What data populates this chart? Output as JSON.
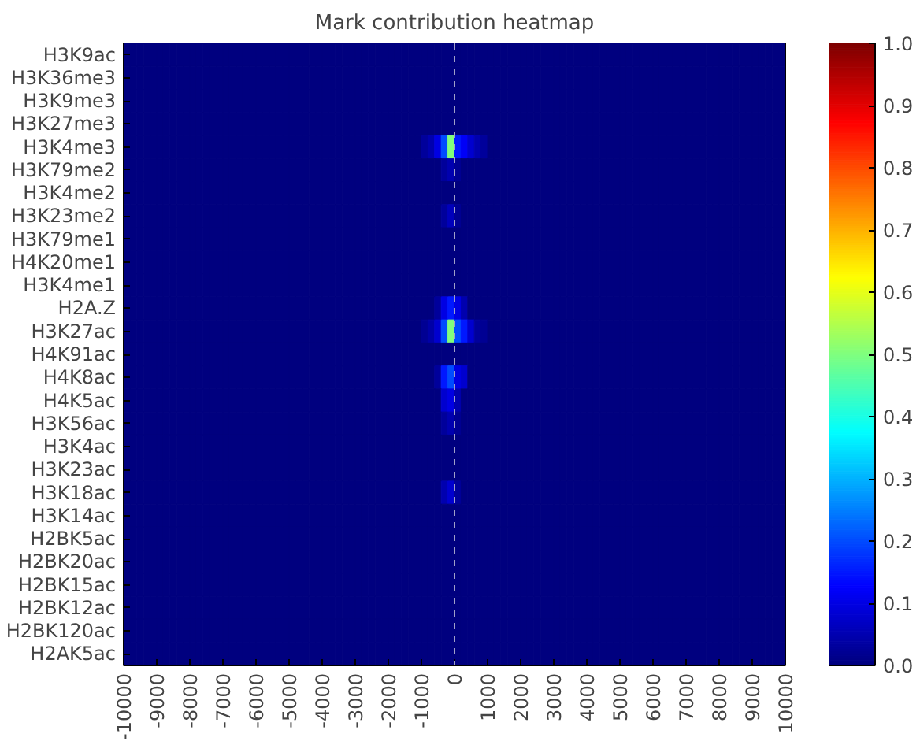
{
  "chart_data": {
    "type": "heatmap",
    "title": "Mark contribution heatmap",
    "x": [
      -9900,
      -9700,
      -9500,
      -9300,
      -9100,
      -8900,
      -8700,
      -8500,
      -8300,
      -8100,
      -7900,
      -7700,
      -7500,
      -7300,
      -7100,
      -6900,
      -6700,
      -6500,
      -6300,
      -6100,
      -5900,
      -5700,
      -5500,
      -5300,
      -5100,
      -4900,
      -4700,
      -4500,
      -4300,
      -4100,
      -3900,
      -3700,
      -3500,
      -3300,
      -3100,
      -2900,
      -2700,
      -2500,
      -2300,
      -2100,
      -1900,
      -1700,
      -1500,
      -1300,
      -1100,
      -900,
      -700,
      -500,
      -300,
      -100,
      100,
      300,
      500,
      700,
      900,
      1100,
      1300,
      1500,
      1700,
      1900,
      2100,
      2300,
      2500,
      2700,
      2900,
      3100,
      3300,
      3500,
      3700,
      3900,
      4100,
      4300,
      4500,
      4700,
      4900,
      5100,
      5300,
      5500,
      5700,
      5900,
      6100,
      6300,
      6500,
      6700,
      6900,
      7100,
      7300,
      7500,
      7700,
      7900,
      8100,
      8300,
      8500,
      8700,
      8900,
      9100,
      9300,
      9500,
      9700,
      9900
    ],
    "y_categories": [
      "H3K9ac",
      "H3K36me3",
      "H3K9me3",
      "H3K27me3",
      "H3K4me3",
      "H3K79me2",
      "H3K4me2",
      "H3K23me2",
      "H3K79me1",
      "H4K20me1",
      "H3K4me1",
      "H2A.Z",
      "H3K27ac",
      "H4K91ac",
      "H4K8ac",
      "H4K5ac",
      "H3K56ac",
      "H3K4ac",
      "H3K23ac",
      "H3K18ac",
      "H3K14ac",
      "H2BK5ac",
      "H2BK20ac",
      "H2BK15ac",
      "H2BK12ac",
      "H2BK120ac",
      "H2AK5ac"
    ],
    "cells": [
      [
        0,
        0,
        0,
        0,
        0,
        0,
        0,
        0,
        0,
        0,
        0,
        0,
        0,
        0,
        0,
        0,
        0,
        0,
        0,
        0,
        0,
        0,
        0,
        0,
        0,
        0,
        0,
        0,
        0,
        0,
        0,
        0,
        0,
        0,
        0,
        0,
        0,
        0,
        0,
        0,
        0,
        0,
        0,
        0,
        0,
        0,
        0,
        0,
        0,
        0,
        0,
        0,
        0,
        0,
        0,
        0,
        0,
        0,
        0,
        0,
        0,
        0,
        0,
        0,
        0,
        0,
        0,
        0,
        0,
        0,
        0,
        0,
        0,
        0,
        0,
        0,
        0,
        0,
        0,
        0,
        0,
        0,
        0,
        0,
        0,
        0,
        0,
        0,
        0,
        0,
        0,
        0,
        0,
        0,
        0,
        0,
        0,
        0,
        0,
        0
      ],
      [
        0,
        0,
        0,
        0,
        0,
        0,
        0,
        0,
        0,
        0,
        0,
        0,
        0,
        0,
        0,
        0,
        0,
        0,
        0,
        0,
        0,
        0,
        0,
        0,
        0,
        0,
        0,
        0,
        0,
        0,
        0,
        0,
        0,
        0,
        0,
        0,
        0,
        0,
        0,
        0,
        0,
        0,
        0,
        0,
        0,
        0,
        0,
        0,
        0,
        0,
        0,
        0,
        0,
        0,
        0,
        0,
        0,
        0,
        0,
        0,
        0,
        0,
        0,
        0,
        0,
        0,
        0,
        0,
        0,
        0,
        0,
        0,
        0,
        0,
        0,
        0,
        0,
        0,
        0,
        0,
        0,
        0,
        0,
        0,
        0,
        0,
        0,
        0,
        0,
        0,
        0,
        0,
        0,
        0,
        0,
        0,
        0,
        0,
        0,
        0
      ],
      [
        0,
        0,
        0,
        0,
        0,
        0,
        0,
        0,
        0,
        0,
        0,
        0,
        0,
        0,
        0,
        0,
        0,
        0,
        0,
        0,
        0,
        0,
        0,
        0,
        0,
        0,
        0,
        0,
        0,
        0,
        0,
        0,
        0,
        0,
        0,
        0,
        0,
        0,
        0,
        0,
        0,
        0,
        0,
        0,
        0,
        0,
        0,
        0,
        0,
        0,
        0,
        0,
        0,
        0,
        0,
        0,
        0,
        0,
        0,
        0,
        0,
        0,
        0,
        0,
        0,
        0,
        0,
        0,
        0,
        0,
        0,
        0,
        0,
        0,
        0,
        0,
        0,
        0,
        0,
        0,
        0,
        0,
        0,
        0,
        0,
        0,
        0,
        0,
        0,
        0,
        0,
        0,
        0,
        0,
        0,
        0,
        0,
        0,
        0,
        0
      ],
      [
        0,
        0,
        0,
        0,
        0,
        0,
        0,
        0,
        0,
        0,
        0,
        0,
        0,
        0,
        0,
        0,
        0,
        0,
        0,
        0,
        0,
        0,
        0,
        0,
        0,
        0,
        0,
        0,
        0,
        0,
        0,
        0,
        0,
        0,
        0,
        0,
        0,
        0,
        0,
        0,
        0,
        0,
        0,
        0,
        0,
        0,
        0,
        0,
        0,
        0,
        0,
        0,
        0,
        0,
        0,
        0,
        0,
        0,
        0,
        0,
        0,
        0,
        0,
        0,
        0,
        0,
        0,
        0,
        0,
        0,
        0,
        0,
        0,
        0,
        0,
        0,
        0,
        0,
        0,
        0,
        0,
        0,
        0,
        0,
        0,
        0,
        0,
        0,
        0,
        0,
        0,
        0,
        0,
        0,
        0,
        0,
        0,
        0,
        0,
        0
      ],
      [
        0,
        0,
        0,
        0,
        0,
        0,
        0,
        0,
        0,
        0,
        0,
        0,
        0,
        0,
        0,
        0,
        0,
        0,
        0,
        0,
        0,
        0,
        0,
        0,
        0,
        0,
        0,
        0,
        0,
        0,
        0,
        0,
        0,
        0,
        0,
        0,
        0,
        0,
        0,
        0,
        0,
        0,
        0,
        0,
        0,
        0.03,
        0.05,
        0.1,
        0.2,
        0.5,
        0.15,
        0.12,
        0.08,
        0.05,
        0.03,
        0,
        0,
        0,
        0,
        0,
        0,
        0,
        0,
        0,
        0,
        0,
        0,
        0,
        0,
        0,
        0,
        0,
        0,
        0,
        0,
        0,
        0,
        0,
        0,
        0,
        0,
        0,
        0,
        0,
        0,
        0,
        0,
        0,
        0,
        0,
        0,
        0,
        0,
        0,
        0,
        0,
        0,
        0,
        0,
        0
      ],
      [
        0,
        0,
        0,
        0,
        0,
        0,
        0,
        0,
        0,
        0,
        0,
        0,
        0,
        0,
        0,
        0,
        0,
        0,
        0,
        0,
        0,
        0,
        0,
        0,
        0,
        0,
        0,
        0,
        0,
        0,
        0,
        0,
        0,
        0,
        0,
        0,
        0,
        0,
        0,
        0,
        0,
        0,
        0,
        0,
        0,
        0,
        0,
        0,
        0.03,
        0.05,
        0.02,
        0,
        0,
        0,
        0,
        0,
        0,
        0,
        0,
        0,
        0,
        0,
        0,
        0,
        0,
        0,
        0,
        0,
        0,
        0,
        0,
        0,
        0,
        0,
        0,
        0,
        0,
        0,
        0,
        0,
        0,
        0,
        0,
        0,
        0,
        0,
        0,
        0,
        0,
        0,
        0,
        0,
        0,
        0,
        0,
        0,
        0,
        0,
        0,
        0
      ],
      [
        0,
        0,
        0,
        0,
        0,
        0,
        0,
        0,
        0,
        0,
        0,
        0,
        0,
        0,
        0,
        0,
        0,
        0,
        0,
        0,
        0,
        0,
        0,
        0,
        0,
        0,
        0,
        0,
        0,
        0,
        0,
        0,
        0,
        0,
        0,
        0,
        0,
        0,
        0,
        0,
        0,
        0,
        0,
        0,
        0,
        0,
        0,
        0,
        0,
        0,
        0,
        0,
        0,
        0,
        0,
        0,
        0,
        0,
        0,
        0,
        0,
        0,
        0,
        0,
        0,
        0,
        0,
        0,
        0,
        0,
        0,
        0,
        0,
        0,
        0,
        0,
        0,
        0,
        0,
        0,
        0,
        0,
        0,
        0,
        0,
        0,
        0,
        0,
        0,
        0,
        0,
        0,
        0,
        0,
        0,
        0,
        0,
        0,
        0,
        0
      ],
      [
        0,
        0,
        0,
        0,
        0,
        0,
        0,
        0,
        0,
        0,
        0,
        0,
        0,
        0,
        0,
        0,
        0,
        0,
        0,
        0,
        0,
        0,
        0,
        0,
        0,
        0,
        0,
        0,
        0,
        0,
        0,
        0,
        0,
        0,
        0,
        0,
        0,
        0,
        0,
        0,
        0,
        0,
        0,
        0,
        0,
        0,
        0,
        0,
        0.03,
        0.06,
        0.02,
        0,
        0,
        0,
        0,
        0,
        0,
        0,
        0,
        0,
        0,
        0,
        0,
        0,
        0,
        0,
        0,
        0,
        0,
        0,
        0,
        0,
        0,
        0,
        0,
        0,
        0,
        0,
        0,
        0,
        0,
        0,
        0,
        0,
        0,
        0,
        0,
        0,
        0,
        0,
        0,
        0,
        0,
        0,
        0,
        0,
        0,
        0,
        0,
        0
      ],
      [
        0,
        0,
        0,
        0,
        0,
        0,
        0,
        0,
        0,
        0,
        0,
        0,
        0,
        0,
        0,
        0,
        0,
        0,
        0,
        0,
        0,
        0,
        0,
        0,
        0,
        0,
        0,
        0,
        0,
        0,
        0,
        0,
        0,
        0,
        0,
        0,
        0,
        0,
        0,
        0,
        0,
        0,
        0,
        0,
        0,
        0,
        0,
        0,
        0,
        0,
        0,
        0,
        0,
        0,
        0,
        0,
        0,
        0,
        0,
        0,
        0,
        0,
        0,
        0,
        0,
        0,
        0,
        0,
        0,
        0,
        0,
        0,
        0,
        0,
        0,
        0,
        0,
        0,
        0,
        0,
        0,
        0,
        0,
        0,
        0,
        0,
        0,
        0,
        0,
        0,
        0,
        0,
        0,
        0,
        0,
        0,
        0,
        0,
        0,
        0
      ],
      [
        0,
        0,
        0,
        0,
        0,
        0,
        0,
        0,
        0,
        0,
        0,
        0,
        0,
        0,
        0,
        0,
        0,
        0,
        0,
        0,
        0,
        0,
        0,
        0,
        0,
        0,
        0,
        0,
        0,
        0,
        0,
        0,
        0,
        0,
        0,
        0,
        0,
        0,
        0,
        0,
        0,
        0,
        0,
        0,
        0,
        0,
        0,
        0,
        0,
        0,
        0,
        0,
        0,
        0,
        0,
        0,
        0,
        0,
        0,
        0,
        0,
        0,
        0,
        0,
        0,
        0,
        0,
        0,
        0,
        0,
        0,
        0,
        0,
        0,
        0,
        0,
        0,
        0,
        0,
        0,
        0,
        0,
        0,
        0,
        0,
        0,
        0,
        0,
        0,
        0,
        0,
        0,
        0,
        0,
        0,
        0,
        0,
        0,
        0,
        0
      ],
      [
        0,
        0,
        0,
        0,
        0,
        0,
        0,
        0,
        0,
        0,
        0,
        0,
        0,
        0,
        0,
        0,
        0,
        0,
        0,
        0,
        0,
        0,
        0,
        0,
        0,
        0,
        0,
        0,
        0,
        0,
        0,
        0,
        0,
        0,
        0,
        0,
        0,
        0,
        0,
        0,
        0,
        0,
        0,
        0,
        0,
        0,
        0,
        0,
        0,
        0,
        0,
        0,
        0,
        0,
        0,
        0,
        0,
        0,
        0,
        0,
        0,
        0,
        0,
        0,
        0,
        0,
        0,
        0,
        0,
        0,
        0,
        0,
        0,
        0,
        0,
        0,
        0,
        0,
        0,
        0,
        0,
        0,
        0,
        0,
        0,
        0,
        0,
        0,
        0,
        0,
        0,
        0,
        0,
        0,
        0,
        0,
        0,
        0,
        0,
        0
      ],
      [
        0,
        0,
        0,
        0,
        0,
        0,
        0,
        0,
        0,
        0,
        0,
        0,
        0,
        0,
        0,
        0,
        0,
        0,
        0,
        0,
        0,
        0,
        0,
        0,
        0,
        0,
        0,
        0,
        0,
        0,
        0,
        0,
        0,
        0,
        0,
        0,
        0,
        0,
        0,
        0,
        0,
        0,
        0,
        0,
        0,
        0,
        0,
        0.03,
        0.1,
        0.15,
        0.1,
        0.05,
        0,
        0,
        0,
        0,
        0,
        0,
        0,
        0,
        0,
        0,
        0,
        0,
        0,
        0,
        0,
        0,
        0,
        0,
        0,
        0,
        0,
        0,
        0,
        0,
        0,
        0,
        0,
        0,
        0,
        0,
        0,
        0,
        0,
        0,
        0,
        0,
        0,
        0,
        0,
        0,
        0,
        0,
        0,
        0,
        0,
        0,
        0,
        0
      ],
      [
        0,
        0,
        0,
        0,
        0,
        0,
        0,
        0,
        0,
        0,
        0,
        0,
        0,
        0,
        0,
        0,
        0,
        0,
        0,
        0,
        0,
        0,
        0,
        0,
        0,
        0,
        0,
        0,
        0,
        0,
        0,
        0,
        0,
        0,
        0,
        0,
        0,
        0,
        0,
        0,
        0,
        0,
        0,
        0,
        0,
        0.02,
        0.04,
        0.08,
        0.2,
        0.5,
        0.2,
        0.15,
        0.08,
        0.03,
        0.02,
        0,
        0,
        0,
        0,
        0,
        0,
        0,
        0,
        0,
        0,
        0,
        0,
        0,
        0,
        0,
        0,
        0,
        0,
        0,
        0,
        0,
        0,
        0,
        0,
        0,
        0,
        0,
        0,
        0,
        0,
        0,
        0,
        0,
        0,
        0,
        0,
        0,
        0,
        0,
        0,
        0,
        0,
        0,
        0,
        0
      ],
      [
        0,
        0,
        0,
        0,
        0,
        0,
        0,
        0,
        0,
        0,
        0,
        0,
        0,
        0,
        0,
        0,
        0,
        0,
        0,
        0,
        0,
        0,
        0,
        0,
        0,
        0,
        0,
        0,
        0,
        0,
        0,
        0,
        0,
        0,
        0,
        0,
        0,
        0,
        0,
        0,
        0,
        0,
        0,
        0,
        0,
        0,
        0,
        0,
        0,
        0,
        0,
        0,
        0,
        0,
        0,
        0,
        0,
        0,
        0,
        0,
        0,
        0,
        0,
        0,
        0,
        0,
        0,
        0,
        0,
        0,
        0,
        0,
        0,
        0,
        0,
        0,
        0,
        0,
        0,
        0,
        0,
        0,
        0,
        0,
        0,
        0,
        0,
        0,
        0,
        0,
        0,
        0,
        0,
        0,
        0,
        0,
        0,
        0,
        0,
        0
      ],
      [
        0,
        0,
        0,
        0,
        0,
        0,
        0,
        0,
        0,
        0,
        0,
        0,
        0,
        0,
        0,
        0,
        0,
        0,
        0,
        0,
        0,
        0,
        0,
        0,
        0,
        0,
        0,
        0,
        0,
        0,
        0,
        0,
        0,
        0,
        0,
        0,
        0,
        0,
        0,
        0,
        0,
        0,
        0,
        0,
        0,
        0,
        0,
        0.03,
        0.15,
        0.2,
        0.1,
        0.08,
        0,
        0,
        0,
        0,
        0,
        0,
        0,
        0,
        0,
        0,
        0,
        0,
        0,
        0,
        0,
        0,
        0,
        0,
        0,
        0,
        0,
        0,
        0,
        0,
        0,
        0,
        0,
        0,
        0,
        0,
        0,
        0,
        0,
        0,
        0,
        0,
        0,
        0,
        0,
        0,
        0,
        0,
        0,
        0,
        0,
        0,
        0,
        0
      ],
      [
        0,
        0,
        0,
        0,
        0,
        0,
        0,
        0,
        0,
        0,
        0,
        0,
        0,
        0,
        0,
        0,
        0,
        0,
        0,
        0,
        0,
        0,
        0,
        0,
        0,
        0,
        0,
        0,
        0,
        0,
        0,
        0,
        0,
        0,
        0,
        0,
        0,
        0,
        0,
        0,
        0,
        0,
        0,
        0,
        0,
        0,
        0,
        0,
        0.08,
        0.1,
        0.05,
        0,
        0,
        0,
        0,
        0,
        0,
        0,
        0,
        0,
        0,
        0,
        0,
        0,
        0,
        0,
        0,
        0,
        0,
        0,
        0,
        0,
        0,
        0,
        0,
        0,
        0,
        0,
        0,
        0,
        0,
        0,
        0,
        0,
        0,
        0,
        0,
        0,
        0,
        0,
        0,
        0,
        0,
        0,
        0,
        0,
        0,
        0,
        0,
        0
      ],
      [
        0,
        0,
        0,
        0,
        0,
        0,
        0,
        0,
        0,
        0,
        0,
        0,
        0,
        0,
        0,
        0,
        0,
        0,
        0,
        0,
        0,
        0,
        0,
        0,
        0,
        0,
        0,
        0,
        0,
        0,
        0,
        0,
        0,
        0,
        0,
        0,
        0,
        0,
        0,
        0,
        0,
        0,
        0,
        0,
        0,
        0,
        0,
        0,
        0.03,
        0.05,
        0.02,
        0,
        0,
        0,
        0,
        0,
        0,
        0,
        0,
        0,
        0,
        0,
        0,
        0,
        0,
        0,
        0,
        0,
        0,
        0,
        0,
        0,
        0,
        0,
        0,
        0,
        0,
        0,
        0,
        0,
        0,
        0,
        0,
        0,
        0,
        0,
        0,
        0,
        0,
        0,
        0,
        0,
        0,
        0,
        0,
        0,
        0,
        0,
        0,
        0
      ],
      [
        0,
        0,
        0,
        0,
        0,
        0,
        0,
        0,
        0,
        0,
        0,
        0,
        0,
        0,
        0,
        0,
        0,
        0,
        0,
        0,
        0,
        0,
        0,
        0,
        0,
        0,
        0,
        0,
        0,
        0,
        0,
        0,
        0,
        0,
        0,
        0,
        0,
        0,
        0,
        0,
        0,
        0,
        0,
        0,
        0,
        0,
        0,
        0,
        0,
        0,
        0,
        0,
        0,
        0,
        0,
        0,
        0,
        0,
        0,
        0,
        0,
        0,
        0,
        0,
        0,
        0,
        0,
        0,
        0,
        0,
        0,
        0,
        0,
        0,
        0,
        0,
        0,
        0,
        0,
        0,
        0,
        0,
        0,
        0,
        0,
        0,
        0,
        0,
        0,
        0,
        0,
        0,
        0,
        0,
        0,
        0,
        0,
        0,
        0,
        0
      ],
      [
        0,
        0,
        0,
        0,
        0,
        0,
        0,
        0,
        0,
        0,
        0,
        0,
        0,
        0,
        0,
        0,
        0,
        0,
        0,
        0,
        0,
        0,
        0,
        0,
        0,
        0,
        0,
        0,
        0,
        0,
        0,
        0,
        0,
        0,
        0,
        0,
        0,
        0,
        0,
        0,
        0,
        0,
        0,
        0,
        0,
        0,
        0,
        0,
        0,
        0,
        0,
        0,
        0,
        0,
        0,
        0,
        0,
        0,
        0,
        0,
        0,
        0,
        0,
        0,
        0,
        0,
        0,
        0,
        0,
        0,
        0,
        0,
        0,
        0,
        0,
        0,
        0,
        0,
        0,
        0,
        0,
        0,
        0,
        0,
        0,
        0,
        0,
        0,
        0,
        0,
        0,
        0,
        0,
        0,
        0,
        0,
        0,
        0,
        0,
        0
      ],
      [
        0,
        0,
        0,
        0,
        0,
        0,
        0,
        0,
        0,
        0,
        0,
        0,
        0,
        0,
        0,
        0,
        0,
        0,
        0,
        0,
        0,
        0,
        0,
        0,
        0,
        0,
        0,
        0,
        0,
        0,
        0,
        0,
        0,
        0,
        0,
        0,
        0,
        0,
        0,
        0,
        0,
        0,
        0,
        0,
        0,
        0,
        0,
        0,
        0.05,
        0.08,
        0.03,
        0,
        0,
        0,
        0,
        0,
        0,
        0,
        0,
        0,
        0,
        0,
        0,
        0,
        0,
        0,
        0,
        0,
        0,
        0,
        0,
        0,
        0,
        0,
        0,
        0,
        0,
        0,
        0,
        0,
        0,
        0,
        0,
        0,
        0,
        0,
        0,
        0,
        0,
        0,
        0,
        0,
        0,
        0,
        0,
        0,
        0,
        0,
        0,
        0
      ],
      [
        0,
        0,
        0,
        0,
        0,
        0,
        0,
        0,
        0,
        0,
        0,
        0,
        0,
        0,
        0,
        0,
        0,
        0,
        0,
        0,
        0,
        0,
        0,
        0,
        0,
        0,
        0,
        0,
        0,
        0,
        0,
        0,
        0,
        0,
        0,
        0,
        0,
        0,
        0,
        0,
        0,
        0,
        0,
        0,
        0,
        0,
        0,
        0,
        0,
        0,
        0,
        0,
        0,
        0,
        0,
        0,
        0,
        0,
        0,
        0,
        0,
        0,
        0,
        0,
        0,
        0,
        0,
        0,
        0,
        0,
        0,
        0,
        0,
        0,
        0,
        0,
        0,
        0,
        0,
        0,
        0,
        0,
        0,
        0,
        0,
        0,
        0,
        0,
        0,
        0,
        0,
        0,
        0,
        0,
        0,
        0,
        0,
        0,
        0,
        0
      ],
      [
        0,
        0,
        0,
        0,
        0,
        0,
        0,
        0,
        0,
        0,
        0,
        0,
        0,
        0,
        0,
        0,
        0,
        0,
        0,
        0,
        0,
        0,
        0,
        0,
        0,
        0,
        0,
        0,
        0,
        0,
        0,
        0,
        0,
        0,
        0,
        0,
        0,
        0,
        0,
        0,
        0,
        0,
        0,
        0,
        0,
        0,
        0,
        0,
        0,
        0,
        0,
        0,
        0,
        0,
        0,
        0,
        0,
        0,
        0,
        0,
        0,
        0,
        0,
        0,
        0,
        0,
        0,
        0,
        0,
        0,
        0,
        0,
        0,
        0,
        0,
        0,
        0,
        0,
        0,
        0,
        0,
        0,
        0,
        0,
        0,
        0,
        0,
        0,
        0,
        0,
        0,
        0,
        0,
        0,
        0,
        0,
        0,
        0,
        0,
        0
      ],
      [
        0,
        0,
        0,
        0,
        0,
        0,
        0,
        0,
        0,
        0,
        0,
        0,
        0,
        0,
        0,
        0,
        0,
        0,
        0,
        0,
        0,
        0,
        0,
        0,
        0,
        0,
        0,
        0,
        0,
        0,
        0,
        0,
        0,
        0,
        0,
        0,
        0,
        0,
        0,
        0,
        0,
        0,
        0,
        0,
        0,
        0,
        0,
        0,
        0,
        0,
        0,
        0,
        0,
        0,
        0,
        0,
        0,
        0,
        0,
        0,
        0,
        0,
        0,
        0,
        0,
        0,
        0,
        0,
        0,
        0,
        0,
        0,
        0,
        0,
        0,
        0,
        0,
        0,
        0,
        0,
        0,
        0,
        0,
        0,
        0,
        0,
        0,
        0,
        0,
        0,
        0,
        0,
        0,
        0,
        0,
        0,
        0,
        0,
        0,
        0
      ],
      [
        0,
        0,
        0,
        0,
        0,
        0,
        0,
        0,
        0,
        0,
        0,
        0,
        0,
        0,
        0,
        0,
        0,
        0,
        0,
        0,
        0,
        0,
        0,
        0,
        0,
        0,
        0,
        0,
        0,
        0,
        0,
        0,
        0,
        0,
        0,
        0,
        0,
        0,
        0,
        0,
        0,
        0,
        0,
        0,
        0,
        0,
        0,
        0,
        0,
        0,
        0,
        0,
        0,
        0,
        0,
        0,
        0,
        0,
        0,
        0,
        0,
        0,
        0,
        0,
        0,
        0,
        0,
        0,
        0,
        0,
        0,
        0,
        0,
        0,
        0,
        0,
        0,
        0,
        0,
        0,
        0,
        0,
        0,
        0,
        0,
        0,
        0,
        0,
        0,
        0,
        0,
        0,
        0,
        0,
        0,
        0,
        0,
        0,
        0,
        0
      ],
      [
        0,
        0,
        0,
        0,
        0,
        0,
        0,
        0,
        0,
        0,
        0,
        0,
        0,
        0,
        0,
        0,
        0,
        0,
        0,
        0,
        0,
        0,
        0,
        0,
        0,
        0,
        0,
        0,
        0,
        0,
        0,
        0,
        0,
        0,
        0,
        0,
        0,
        0,
        0,
        0,
        0,
        0,
        0,
        0,
        0,
        0,
        0,
        0,
        0,
        0,
        0,
        0,
        0,
        0,
        0,
        0,
        0,
        0,
        0,
        0,
        0,
        0,
        0,
        0,
        0,
        0,
        0,
        0,
        0,
        0,
        0,
        0,
        0,
        0,
        0,
        0,
        0,
        0,
        0,
        0,
        0,
        0,
        0,
        0,
        0,
        0,
        0,
        0,
        0,
        0,
        0,
        0,
        0,
        0,
        0,
        0,
        0,
        0,
        0,
        0
      ],
      [
        0,
        0,
        0,
        0,
        0,
        0,
        0,
        0,
        0,
        0,
        0,
        0,
        0,
        0,
        0,
        0,
        0,
        0,
        0,
        0,
        0,
        0,
        0,
        0,
        0,
        0,
        0,
        0,
        0,
        0,
        0,
        0,
        0,
        0,
        0,
        0,
        0,
        0,
        0,
        0,
        0,
        0,
        0,
        0,
        0,
        0,
        0,
        0,
        0,
        0,
        0,
        0,
        0,
        0,
        0,
        0,
        0,
        0,
        0,
        0,
        0,
        0,
        0,
        0,
        0,
        0,
        0,
        0,
        0,
        0,
        0,
        0,
        0,
        0,
        0,
        0,
        0,
        0,
        0,
        0,
        0,
        0,
        0,
        0,
        0,
        0,
        0,
        0,
        0,
        0,
        0,
        0,
        0,
        0,
        0,
        0,
        0,
        0,
        0,
        0
      ],
      [
        0,
        0,
        0,
        0,
        0,
        0,
        0,
        0,
        0,
        0,
        0,
        0,
        0,
        0,
        0,
        0,
        0,
        0,
        0,
        0,
        0,
        0,
        0,
        0,
        0,
        0,
        0,
        0,
        0,
        0,
        0,
        0,
        0,
        0,
        0,
        0,
        0,
        0,
        0,
        0,
        0,
        0,
        0,
        0,
        0,
        0,
        0,
        0,
        0,
        0,
        0,
        0,
        0,
        0,
        0,
        0,
        0,
        0,
        0,
        0,
        0,
        0,
        0,
        0,
        0,
        0,
        0,
        0,
        0,
        0,
        0,
        0,
        0,
        0,
        0,
        0,
        0,
        0,
        0,
        0,
        0,
        0,
        0,
        0,
        0,
        0,
        0,
        0,
        0,
        0,
        0,
        0,
        0,
        0,
        0,
        0,
        0,
        0,
        0,
        0
      ]
    ],
    "xlim": [
      -10000,
      10000
    ],
    "xticks": [
      -10000,
      -9000,
      -8000,
      -7000,
      -6000,
      -5000,
      -4000,
      -3000,
      -2000,
      -1000,
      0,
      1000,
      2000,
      3000,
      4000,
      5000,
      6000,
      7000,
      8000,
      9000,
      10000
    ],
    "clim": [
      0,
      1
    ],
    "cticks": [
      {
        "value": 0,
        "label": "0.0"
      },
      0.1,
      0.2,
      0.3,
      0.4,
      0.5,
      0.6,
      0.7,
      0.8,
      0.9,
      {
        "value": 1,
        "label": "1.0"
      }
    ],
    "ref_lines": [
      {
        "axis": "x",
        "value": 0,
        "label": null,
        "color": "#a0a0c8",
        "line_style": "dashed"
      }
    ]
  }
}
